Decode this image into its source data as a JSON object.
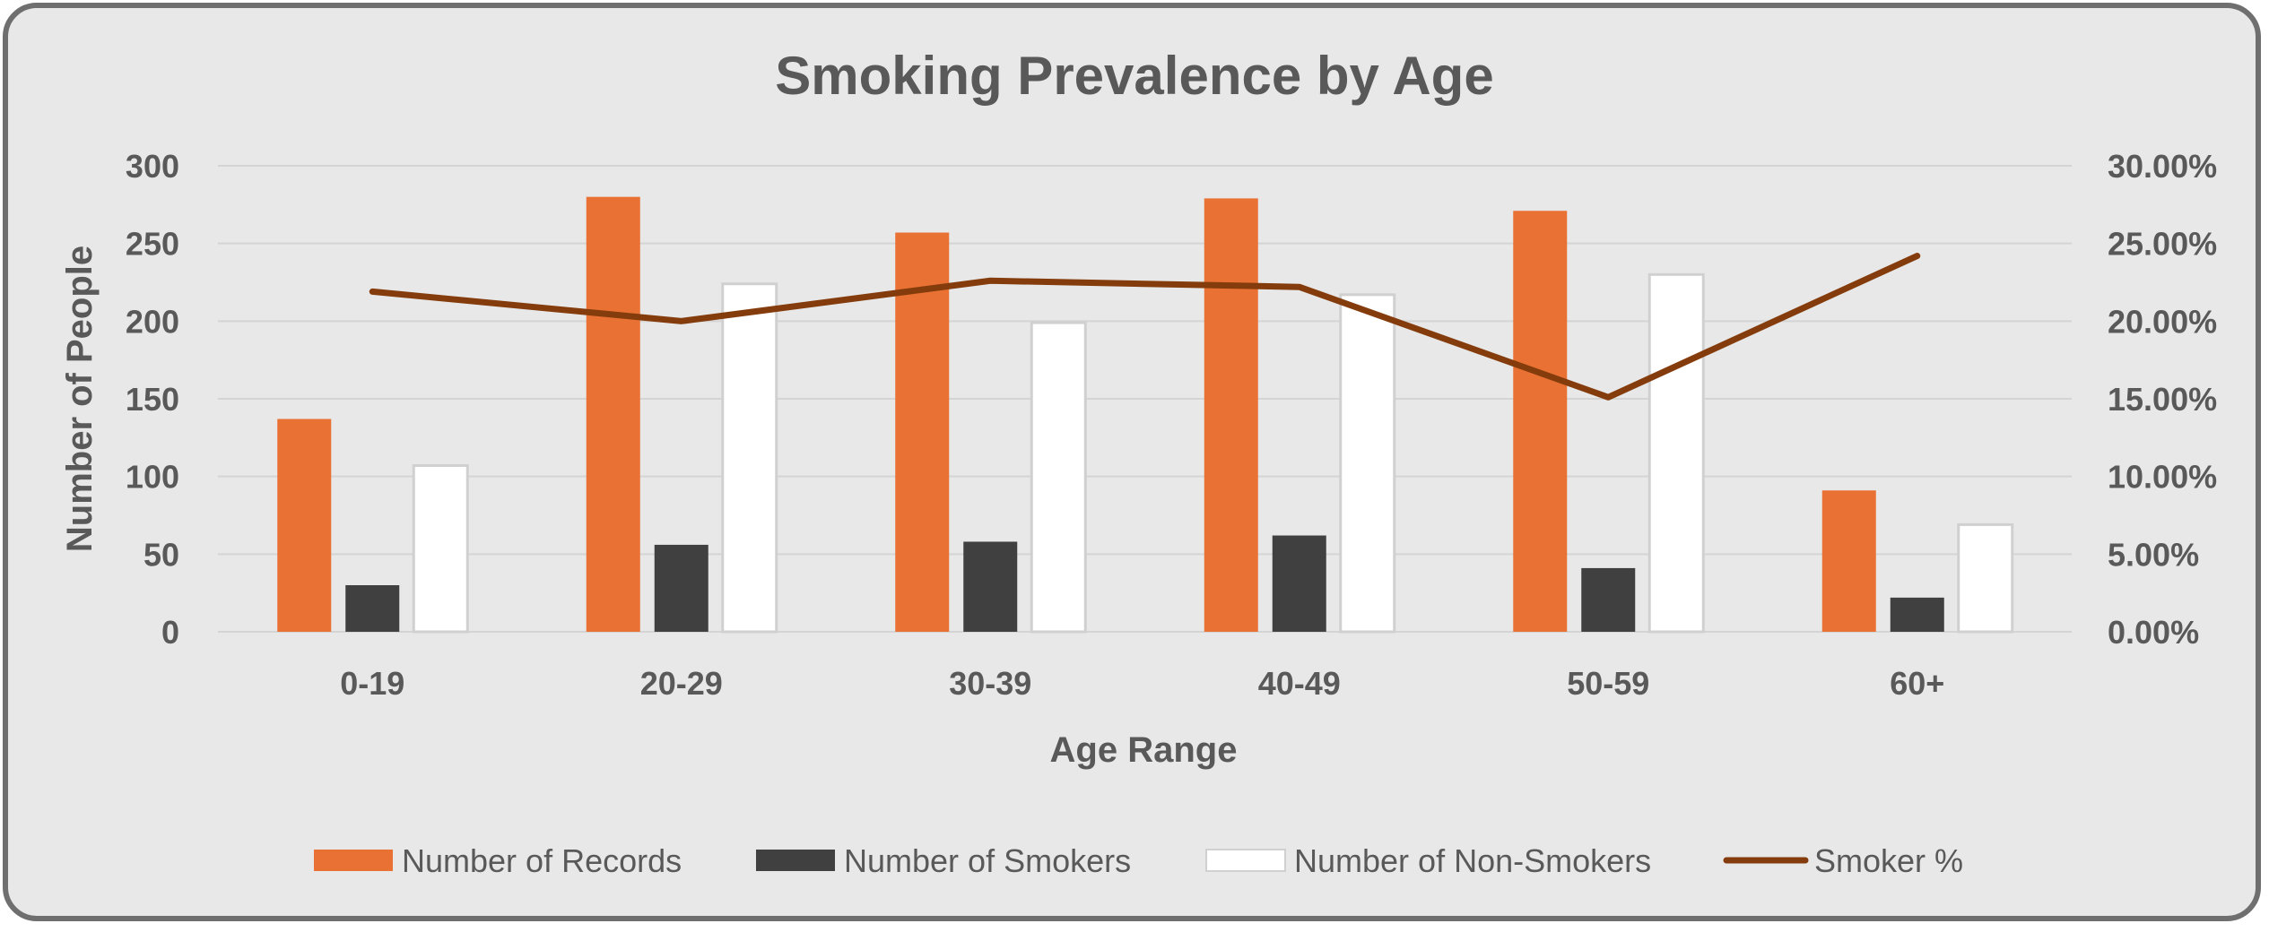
{
  "chart_data": {
    "type": "bar",
    "title": "Smoking Prevalence by Age",
    "xlabel": "Age Range",
    "ylabel": "Number of People",
    "y2label": "",
    "categories": [
      "0-19",
      "20-29",
      "30-39",
      "40-49",
      "50-59",
      "60+"
    ],
    "ylim": [
      0,
      300
    ],
    "yticks": [
      "0",
      "50",
      "100",
      "150",
      "200",
      "250",
      "300"
    ],
    "y2lim": [
      0,
      0.3
    ],
    "y2ticks": [
      "0.00%",
      "5.00%",
      "10.00%",
      "15.00%",
      "20.00%",
      "25.00%",
      "30.00%"
    ],
    "grid": true,
    "legend_position": "bottom",
    "series": [
      {
        "name": "Number of Records",
        "type": "bar",
        "color": "#e87133",
        "values": [
          137,
          280,
          257,
          279,
          271,
          91
        ]
      },
      {
        "name": "Number of Smokers",
        "type": "bar",
        "color": "#404040",
        "values": [
          30,
          56,
          58,
          62,
          41,
          22
        ]
      },
      {
        "name": "Number of Non-Smokers",
        "type": "bar",
        "color": "#ffffff",
        "values": [
          107,
          224,
          199,
          217,
          230,
          69
        ]
      },
      {
        "name": "Smoker %",
        "type": "line",
        "axis": "secondary",
        "color": "#843c0c",
        "values": [
          0.219,
          0.2,
          0.226,
          0.222,
          0.151,
          0.242
        ]
      }
    ]
  }
}
